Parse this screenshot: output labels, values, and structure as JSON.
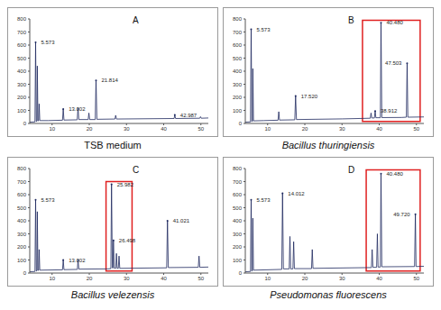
{
  "chart_data": [
    {
      "type": "line",
      "title": "A",
      "caption": "TSB medium",
      "color": "#1f2a60",
      "grid": false,
      "xlim": [
        4,
        52
      ],
      "xticks": [
        10,
        20,
        30,
        40,
        50
      ],
      "ylim": [
        0,
        800
      ],
      "yticks": [
        0,
        100,
        200,
        300,
        400,
        500,
        600,
        700,
        800
      ],
      "x": [
        4,
        5.4,
        5.573,
        5.75,
        5.95,
        6.027,
        6.2,
        6.4,
        6.52,
        6.7,
        9,
        12.8,
        13.002,
        13.2,
        16.75,
        16.977,
        17.2,
        19.7,
        19.9,
        20.1,
        21.6,
        21.814,
        22.05,
        26.9,
        27.1,
        27.3,
        42.8,
        42.987,
        43.2,
        49.7,
        49.9,
        50.1,
        52
      ],
      "values": [
        10,
        12,
        620,
        15,
        18,
        440,
        20,
        22,
        150,
        22,
        22,
        25,
        110,
        26,
        28,
        120,
        30,
        30,
        80,
        30,
        30,
        330,
        32,
        34,
        62,
        34,
        38,
        65,
        38,
        40,
        52,
        40,
        42
      ],
      "annotations": [
        {
          "x": 5.573,
          "y": 620,
          "text": "5.573"
        },
        {
          "x": 13.002,
          "y": 110,
          "text": "13.002"
        },
        {
          "x": 21.814,
          "y": 330,
          "text": "21.814"
        },
        {
          "x": 42.987,
          "y": 65,
          "text": "42.987"
        }
      ]
    },
    {
      "type": "line",
      "title": "B",
      "caption": "Bacillus thuringiensis",
      "color": "#1f2a60",
      "grid": false,
      "xlim": [
        4,
        52
      ],
      "xticks": [
        10,
        20,
        30,
        40,
        50
      ],
      "ylim": [
        0,
        800
      ],
      "yticks": [
        0,
        100,
        200,
        300,
        400,
        500,
        600,
        700,
        800
      ],
      "x": [
        4,
        5.4,
        5.573,
        5.75,
        5.95,
        6.027,
        6.2,
        9,
        12.8,
        13.002,
        13.2,
        17.3,
        17.52,
        17.75,
        30,
        37.6,
        37.8,
        38.0,
        38.7,
        38.912,
        39.1,
        40.3,
        40.48,
        40.7,
        46,
        47.3,
        47.503,
        47.7,
        52
      ],
      "values": [
        10,
        12,
        720,
        15,
        18,
        420,
        20,
        22,
        25,
        90,
        26,
        28,
        210,
        30,
        35,
        40,
        80,
        42,
        42,
        95,
        44,
        44,
        770,
        45,
        46,
        48,
        460,
        48,
        50
      ],
      "annotations": [
        {
          "x": 5.573,
          "y": 720,
          "text": "5.573"
        },
        {
          "x": 17.52,
          "y": 210,
          "text": "17.520"
        },
        {
          "x": 38.912,
          "y": 95,
          "text": "38.912"
        },
        {
          "x": 40.48,
          "y": 770,
          "text": "40.480"
        },
        {
          "x": 47.503,
          "y": 460,
          "text": "47.503"
        }
      ],
      "highlight": {
        "x1": 35.5,
        "x2": 51,
        "y1": 15,
        "y2": 790,
        "color": "#e02020"
      }
    },
    {
      "type": "line",
      "title": "C",
      "caption": "Bacillus velezensis",
      "color": "#1f2a60",
      "grid": false,
      "xlim": [
        4,
        52
      ],
      "xticks": [
        10,
        20,
        30,
        40,
        50
      ],
      "ylim": [
        0,
        800
      ],
      "yticks": [
        0,
        100,
        200,
        300,
        400,
        500,
        600,
        700,
        800
      ],
      "x": [
        4,
        5.4,
        5.573,
        5.75,
        5.95,
        6.027,
        6.2,
        6.4,
        6.52,
        6.7,
        12.8,
        13.002,
        13.2,
        16.8,
        16.977,
        17.2,
        25,
        25.8,
        25.982,
        26.2,
        26.35,
        26.498,
        26.7,
        27.1,
        27.3,
        27.5,
        27.8,
        28.0,
        28.2,
        40.8,
        41.021,
        41.25,
        49.3,
        49.5,
        49.7,
        52
      ],
      "values": [
        10,
        12,
        560,
        15,
        18,
        470,
        20,
        22,
        180,
        22,
        25,
        100,
        26,
        28,
        105,
        30,
        32,
        34,
        680,
        40,
        38,
        250,
        38,
        36,
        150,
        36,
        36,
        130,
        36,
        40,
        400,
        42,
        44,
        130,
        44,
        46
      ],
      "annotations": [
        {
          "x": 5.573,
          "y": 560,
          "text": "5.573"
        },
        {
          "x": 13.002,
          "y": 100,
          "text": "13.002"
        },
        {
          "x": 25.982,
          "y": 680,
          "text": "25.982"
        },
        {
          "x": 26.498,
          "y": 250,
          "text": "26.498"
        },
        {
          "x": 41.021,
          "y": 400,
          "text": "41.021"
        }
      ],
      "highlight": {
        "x1": 24.5,
        "x2": 31.5,
        "y1": 15,
        "y2": 700,
        "color": "#e02020"
      }
    },
    {
      "type": "line",
      "title": "D",
      "caption": "Pseudomonas fluorescens",
      "color": "#1f2a60",
      "grid": false,
      "xlim": [
        4,
        52
      ],
      "xticks": [
        10,
        20,
        30,
        40,
        50
      ],
      "ylim": [
        0,
        800
      ],
      "yticks": [
        0,
        100,
        200,
        300,
        400,
        500,
        600,
        700,
        800
      ],
      "x": [
        4,
        5.4,
        5.573,
        5.75,
        5.9,
        6.027,
        6.2,
        13.8,
        14.012,
        14.25,
        15.8,
        16.0,
        16.2,
        16.8,
        17.0,
        17.2,
        21.8,
        22.0,
        22.2,
        37.9,
        38.1,
        38.3,
        39.3,
        39.5,
        39.7,
        40.3,
        40.48,
        40.7,
        49.5,
        49.72,
        49.9,
        52
      ],
      "values": [
        10,
        12,
        560,
        15,
        18,
        420,
        22,
        28,
        610,
        32,
        32,
        280,
        32,
        32,
        240,
        34,
        34,
        180,
        36,
        42,
        180,
        44,
        44,
        300,
        46,
        46,
        760,
        48,
        50,
        450,
        50,
        52
      ],
      "annotations": [
        {
          "x": 5.573,
          "y": 560,
          "text": "5.573"
        },
        {
          "x": 14.012,
          "y": 610,
          "text": "14.012"
        },
        {
          "x": 40.48,
          "y": 760,
          "text": "40.480"
        },
        {
          "x": 49.72,
          "y": 450,
          "text": "49.720"
        }
      ],
      "highlight": {
        "x1": 36.5,
        "x2": 51,
        "y1": 15,
        "y2": 790,
        "color": "#e02020"
      }
    }
  ]
}
